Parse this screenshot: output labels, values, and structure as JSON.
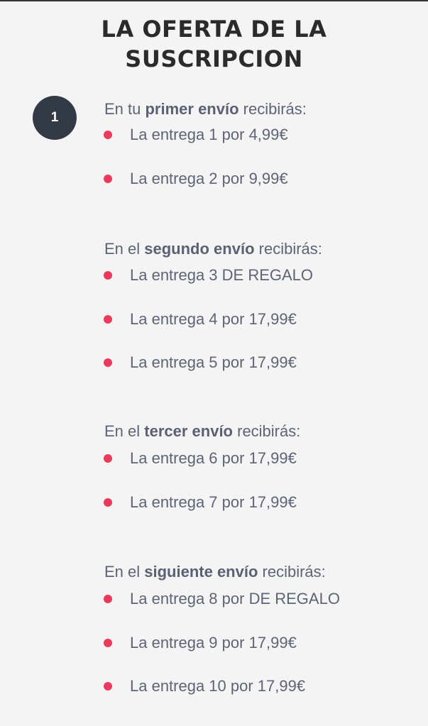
{
  "title": {
    "line1": "LA OFERTA DE LA",
    "line2": "SUSCRIPCION"
  },
  "step_number": "1",
  "bullet_color": "#ec3a5c",
  "groups": [
    {
      "pre": "En tu ",
      "bold": "primer envío",
      "post": " recibirás:",
      "items": [
        "La entrega 1 por 4,99€",
        "La entrega 2 por 9,99€"
      ]
    },
    {
      "pre": "En el ",
      "bold": "segundo envío",
      "post": " recibirás:",
      "items": [
        "La entrega 3 DE REGALO",
        "La entrega 4 por 17,99€",
        "La entrega 5 por 17,99€"
      ]
    },
    {
      "pre": "En el ",
      "bold": "tercer envío",
      "post": " recibirás:",
      "items": [
        "La entrega 6 por 17,99€",
        "La entrega 7 por 17,99€"
      ]
    },
    {
      "pre": "En el ",
      "bold": "siguiente envío",
      "post": " recibirás:",
      "items": [
        "La entrega 8 por DE REGALO",
        "La entrega 9 por 17,99€",
        "La entrega 10 por 17,99€"
      ]
    }
  ]
}
